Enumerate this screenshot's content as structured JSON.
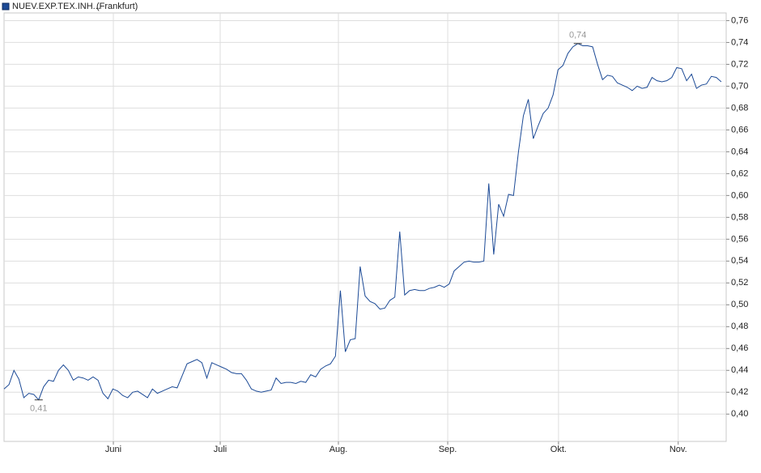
{
  "chart_data": {
    "type": "line",
    "series": [
      {
        "name": "NUEV.EXP.TEX.INH...",
        "color": "#1c4a96",
        "values": [
          0.423,
          0.427,
          0.44,
          0.432,
          0.415,
          0.419,
          0.418,
          0.413,
          0.425,
          0.431,
          0.43,
          0.44,
          0.445,
          0.44,
          0.431,
          0.434,
          0.433,
          0.431,
          0.434,
          0.431,
          0.419,
          0.414,
          0.423,
          0.421,
          0.417,
          0.415,
          0.42,
          0.421,
          0.418,
          0.415,
          0.423,
          0.419,
          0.421,
          0.423,
          0.425,
          0.424,
          0.435,
          0.446,
          0.448,
          0.45,
          0.447,
          0.433,
          0.447,
          0.445,
          0.443,
          0.441,
          0.438,
          0.437,
          0.437,
          0.431,
          0.423,
          0.421,
          0.42,
          0.421,
          0.422,
          0.433,
          0.428,
          0.429,
          0.429,
          0.428,
          0.43,
          0.429,
          0.436,
          0.434,
          0.441,
          0.444,
          0.446,
          0.453,
          0.513,
          0.457,
          0.468,
          0.469,
          0.535,
          0.508,
          0.503,
          0.501,
          0.496,
          0.497,
          0.504,
          0.507,
          0.567,
          0.509,
          0.513,
          0.514,
          0.513,
          0.513,
          0.515,
          0.516,
          0.518,
          0.516,
          0.519,
          0.531,
          0.535,
          0.539,
          0.54,
          0.539,
          0.539,
          0.54,
          0.611,
          0.546,
          0.592,
          0.581,
          0.601,
          0.6,
          0.64,
          0.673,
          0.688,
          0.652,
          0.664,
          0.675,
          0.68,
          0.692,
          0.715,
          0.719,
          0.73,
          0.736,
          0.739,
          0.737,
          0.737,
          0.736,
          0.72,
          0.706,
          0.71,
          0.709,
          0.703,
          0.701,
          0.699,
          0.696,
          0.7,
          0.698,
          0.699,
          0.708,
          0.705,
          0.704,
          0.705,
          0.708,
          0.717,
          0.716,
          0.705,
          0.711,
          0.698,
          0.701,
          0.702,
          0.709,
          0.708,
          0.704
        ]
      }
    ],
    "exchange": "(Frankfurt)",
    "high_label": "0,74",
    "low_label": "0,41",
    "xlim": [
      0,
      146
    ],
    "xticks": [
      {
        "value": 22.1,
        "label": "Juni"
      },
      {
        "value": 43.7,
        "label": "Juli"
      },
      {
        "value": 67.6,
        "label": "Aug."
      },
      {
        "value": 89.7,
        "label": "Sep."
      },
      {
        "value": 112.1,
        "label": "Okt."
      },
      {
        "value": 136.3,
        "label": "Nov."
      }
    ],
    "ylim": [
      0.375,
      0.767
    ],
    "yticks": [
      {
        "value": 0.4,
        "label": "0,40"
      },
      {
        "value": 0.42,
        "label": "0,42"
      },
      {
        "value": 0.44,
        "label": "0,44"
      },
      {
        "value": 0.46,
        "label": "0,46"
      },
      {
        "value": 0.48,
        "label": "0,48"
      },
      {
        "value": 0.5,
        "label": "0,50"
      },
      {
        "value": 0.52,
        "label": "0,52"
      },
      {
        "value": 0.54,
        "label": "0,54"
      },
      {
        "value": 0.56,
        "label": "0,56"
      },
      {
        "value": 0.58,
        "label": "0,58"
      },
      {
        "value": 0.6,
        "label": "0,60"
      },
      {
        "value": 0.62,
        "label": "0,62"
      },
      {
        "value": 0.64,
        "label": "0,64"
      },
      {
        "value": 0.66,
        "label": "0,66"
      },
      {
        "value": 0.68,
        "label": "0,68"
      },
      {
        "value": 0.7,
        "label": "0,70"
      },
      {
        "value": 0.72,
        "label": "0,72"
      },
      {
        "value": 0.74,
        "label": "0,74"
      },
      {
        "value": 0.76,
        "label": "0,76"
      }
    ],
    "grid": true
  }
}
